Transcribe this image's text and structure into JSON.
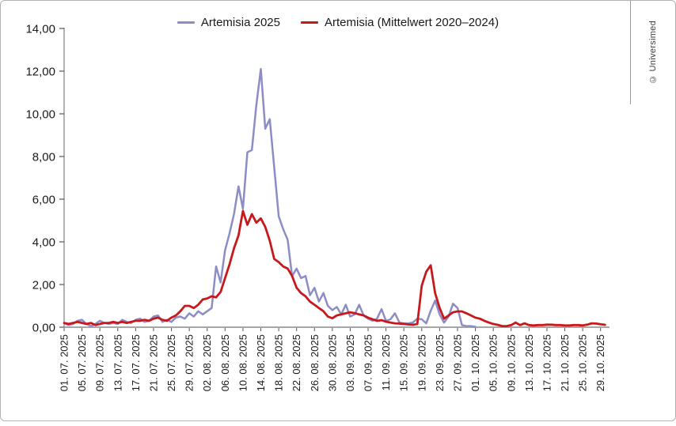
{
  "copyright": "© Universimed",
  "chart_data": {
    "type": "line",
    "title": "",
    "xlabel": "",
    "ylabel": "",
    "grid": false,
    "legend_position": "top-center",
    "ylim": [
      0,
      14
    ],
    "yticks": [
      "0,00",
      "2,00",
      "4,00",
      "6,00",
      "8,00",
      "10,00",
      "12,00",
      "14,00"
    ],
    "x_axis": {
      "point_interval": "daily",
      "tick_interval_days": 4,
      "first_tick": "01. 07. 2025",
      "last_tick": "29. 10. 2025",
      "total_days_shown": 122
    },
    "categories": [
      "01. 07. 2025",
      "05. 07. 2025",
      "09. 07. 2025",
      "13. 07. 2025",
      "17. 07. 2025",
      "21. 07. 2025",
      "25. 07. 2025",
      "29. 07. 2025",
      "02. 08. 2025",
      "06. 08. 2025",
      "10. 08. 2025",
      "14. 08. 2025",
      "18. 08. 2025",
      "22. 08. 2025",
      "26. 08. 2025",
      "30. 08. 2025",
      "03. 09. 2025",
      "07. 09. 2025",
      "11. 09. 2025",
      "15. 09. 2025",
      "19. 09. 2025",
      "23. 09. 2025",
      "27. 09. 2025",
      "01. 10. 2025",
      "05. 10. 2025",
      "09. 10. 2025",
      "13. 10. 2025",
      "17. 10. 2025",
      "21. 10. 2025",
      "25. 10. 2025",
      "29. 10. 2025"
    ],
    "series": [
      {
        "name": "Artemisia 2025",
        "color": "#8d8dc5",
        "stroke_width": 2.5,
        "start_date": "01.07.2025",
        "values": [
          0.2,
          0.1,
          0.15,
          0.3,
          0.35,
          0.15,
          0.05,
          0.15,
          0.3,
          0.2,
          0.15,
          0.2,
          0.15,
          0.35,
          0.25,
          0.2,
          0.35,
          0.4,
          0.25,
          0.3,
          0.5,
          0.55,
          0.25,
          0.35,
          0.25,
          0.45,
          0.5,
          0.4,
          0.65,
          0.5,
          0.75,
          0.6,
          0.75,
          0.9,
          2.85,
          2.1,
          3.6,
          4.4,
          5.3,
          6.6,
          5.55,
          8.2,
          8.3,
          10.4,
          12.1,
          9.3,
          9.75,
          7.5,
          5.2,
          4.6,
          4.1,
          2.4,
          2.75,
          2.3,
          2.4,
          1.5,
          1.85,
          1.2,
          1.6,
          1.0,
          0.8,
          0.95,
          0.6,
          1.05,
          0.5,
          0.6,
          1.05,
          0.55,
          0.4,
          0.3,
          0.4,
          0.85,
          0.3,
          0.37,
          0.65,
          0.22,
          0.18,
          0.18,
          0.22,
          0.4,
          0.37,
          0.18,
          0.77,
          1.25,
          0.6,
          0.22,
          0.5,
          1.1,
          0.9,
          0.1,
          0.05,
          0.05,
          0.02
        ]
      },
      {
        "name": "Artemisia (Mittelwert 2020–2024)",
        "color": "#c9181c",
        "stroke_width": 2.8,
        "start_date": "01.07.2025",
        "values": [
          0.2,
          0.15,
          0.2,
          0.25,
          0.2,
          0.15,
          0.2,
          0.1,
          0.15,
          0.2,
          0.2,
          0.25,
          0.2,
          0.25,
          0.2,
          0.25,
          0.3,
          0.3,
          0.35,
          0.3,
          0.4,
          0.45,
          0.35,
          0.3,
          0.45,
          0.55,
          0.75,
          1.0,
          1.0,
          0.9,
          1.05,
          1.3,
          1.35,
          1.45,
          1.4,
          1.65,
          2.3,
          2.95,
          3.7,
          4.3,
          5.45,
          4.8,
          5.3,
          4.9,
          5.1,
          4.7,
          4.05,
          3.2,
          3.05,
          2.85,
          2.75,
          2.4,
          1.85,
          1.6,
          1.45,
          1.2,
          1.05,
          0.9,
          0.75,
          0.5,
          0.42,
          0.55,
          0.6,
          0.65,
          0.7,
          0.66,
          0.6,
          0.55,
          0.45,
          0.37,
          0.3,
          0.33,
          0.26,
          0.22,
          0.18,
          0.17,
          0.15,
          0.13,
          0.11,
          0.15,
          1.95,
          2.6,
          2.9,
          1.6,
          0.9,
          0.4,
          0.55,
          0.7,
          0.74,
          0.74,
          0.65,
          0.55,
          0.45,
          0.4,
          0.3,
          0.22,
          0.15,
          0.11,
          0.05,
          0.05,
          0.1,
          0.22,
          0.1,
          0.18,
          0.1,
          0.08,
          0.1,
          0.1,
          0.12,
          0.12,
          0.1,
          0.1,
          0.08,
          0.08,
          0.1,
          0.1,
          0.08,
          0.12,
          0.18,
          0.17,
          0.14,
          0.11
        ]
      }
    ],
    "axis_colors": {
      "y_axis_line": "#7f7f7f",
      "x_base_line": "#a6a6a6",
      "tick_color": "#555555",
      "label_color": "#1a1a1a"
    }
  }
}
